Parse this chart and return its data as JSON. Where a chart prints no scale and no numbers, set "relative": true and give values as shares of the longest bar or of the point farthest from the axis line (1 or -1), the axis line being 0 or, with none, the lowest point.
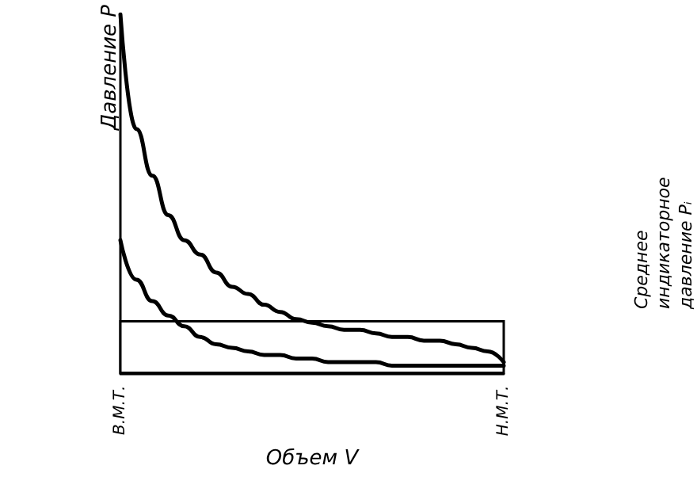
{
  "chart_data": {
    "type": "line",
    "relative": true,
    "xlabel": "Объем V",
    "ylabel": "Давление P",
    "categories": [
      "В.М.Т.",
      null,
      null,
      null,
      null,
      null,
      null,
      null,
      null,
      null,
      null,
      null,
      null,
      null,
      null,
      null,
      null,
      null,
      null,
      null,
      null,
      null,
      null,
      null,
      "Н.М.Т."
    ],
    "series": [
      {
        "color": "#000000",
        "values": [
          1.0,
          0.68,
          0.55,
          0.44,
          0.37,
          0.33,
          0.28,
          0.24,
          0.22,
          0.19,
          0.17,
          0.15,
          0.14,
          0.13,
          0.12,
          0.12,
          0.11,
          0.1,
          0.1,
          0.09,
          0.09,
          0.08,
          0.07,
          0.06,
          0.03
        ]
      },
      {
        "color": "#000000",
        "values": [
          0.37,
          0.26,
          0.2,
          0.16,
          0.13,
          0.1,
          0.08,
          0.07,
          0.06,
          0.05,
          0.05,
          0.04,
          0.04,
          0.03,
          0.03,
          0.03,
          0.03,
          0.02,
          0.02,
          0.02,
          0.02,
          0.02,
          0.02,
          0.02,
          0.02
        ]
      }
    ],
    "bands": [
      {
        "axis": "y",
        "from": 0,
        "to": 0.144,
        "label": "Среднее индикаторное давление Pᵢ"
      }
    ],
    "grid": false,
    "marker": "none",
    "line_style": "solid"
  }
}
